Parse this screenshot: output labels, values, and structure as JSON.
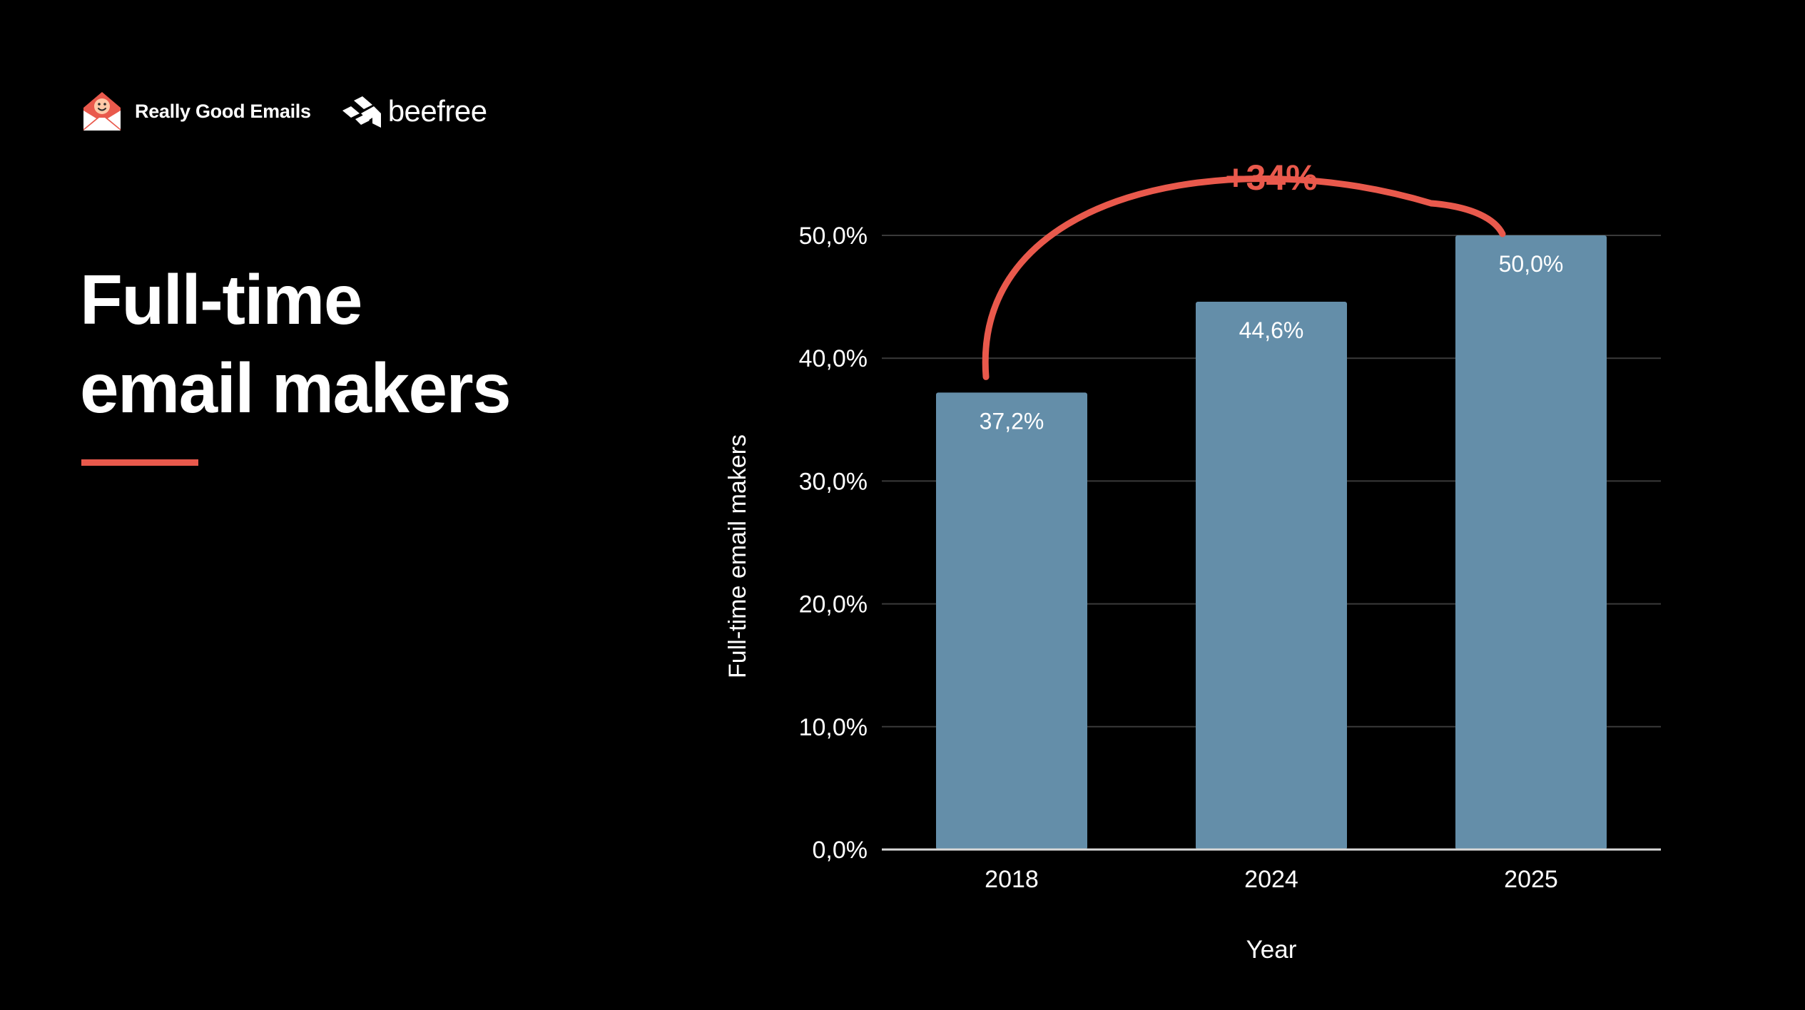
{
  "brand": {
    "rge_name": "Really Good Emails",
    "beefree_name": "beefree",
    "rge_icon": "envelope-smiley-icon",
    "beefree_icon": "beefree-mark-icon"
  },
  "headline": {
    "line1": "Full-time",
    "line2": "email makers"
  },
  "colors": {
    "background": "#000000",
    "accent": "#e9594c",
    "bar": "#648ea9",
    "text": "#ffffff",
    "grid": "#3a3a3a"
  },
  "chart_data": {
    "type": "bar",
    "categories": [
      "2018",
      "2024",
      "2025"
    ],
    "values": [
      37.2,
      44.6,
      50.0
    ],
    "data_labels": [
      "37,2%",
      "44,6%",
      "50,0%"
    ],
    "xlabel": "Year",
    "ylabel": "Full-time email makers",
    "ylim": [
      0,
      50
    ],
    "yticks": [
      0,
      10,
      20,
      30,
      40,
      50
    ],
    "ytick_labels": [
      "0,0%",
      "10,0%",
      "20,0%",
      "30,0%",
      "40,0%",
      "50,0%"
    ],
    "grid": true,
    "legend": "none",
    "annotation": {
      "text": "+34%",
      "from_category": "2018",
      "to_category": "2025"
    }
  }
}
